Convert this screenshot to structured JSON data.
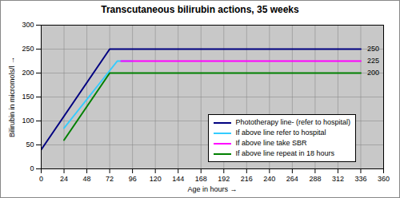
{
  "chart_data": {
    "type": "line",
    "title": "Transcutaneous bilirubin actions, 35 weeks",
    "x_label": "Age in hours",
    "y_label": "Bilirubin in micromols/l",
    "xlim": [
      0,
      360
    ],
    "xticks": [
      0,
      24,
      48,
      72,
      96,
      120,
      144,
      168,
      192,
      216,
      240,
      264,
      288,
      312,
      336,
      360
    ],
    "ylim": [
      0,
      300
    ],
    "yticks": [
      0,
      50,
      100,
      150,
      200,
      250,
      300
    ],
    "grid": true,
    "legend": "lower right",
    "series": [
      {
        "name": "Phototherapy line- (refer to hospital)",
        "color": "#000080",
        "x": [
          0,
          72,
          336
        ],
        "values": [
          40,
          250,
          250
        ]
      },
      {
        "name": "If above line refer to hospital",
        "color": "#33ccff",
        "x": [
          24,
          80,
          96
        ],
        "values": [
          85,
          225,
          225
        ]
      },
      {
        "name": "If above line take SBR",
        "color": "#ff00ff",
        "x": [
          84,
          336
        ],
        "values": [
          225,
          225
        ]
      },
      {
        "name": "If above line repeat in 18 hours",
        "color": "#008000",
        "x": [
          24,
          72,
          336
        ],
        "values": [
          60,
          200,
          200
        ]
      }
    ],
    "annotations": [
      {
        "text": "250",
        "x": 336,
        "y": 250
      },
      {
        "text": "225",
        "x": 336,
        "y": 225
      },
      {
        "text": "200",
        "x": 336,
        "y": 200
      }
    ]
  }
}
